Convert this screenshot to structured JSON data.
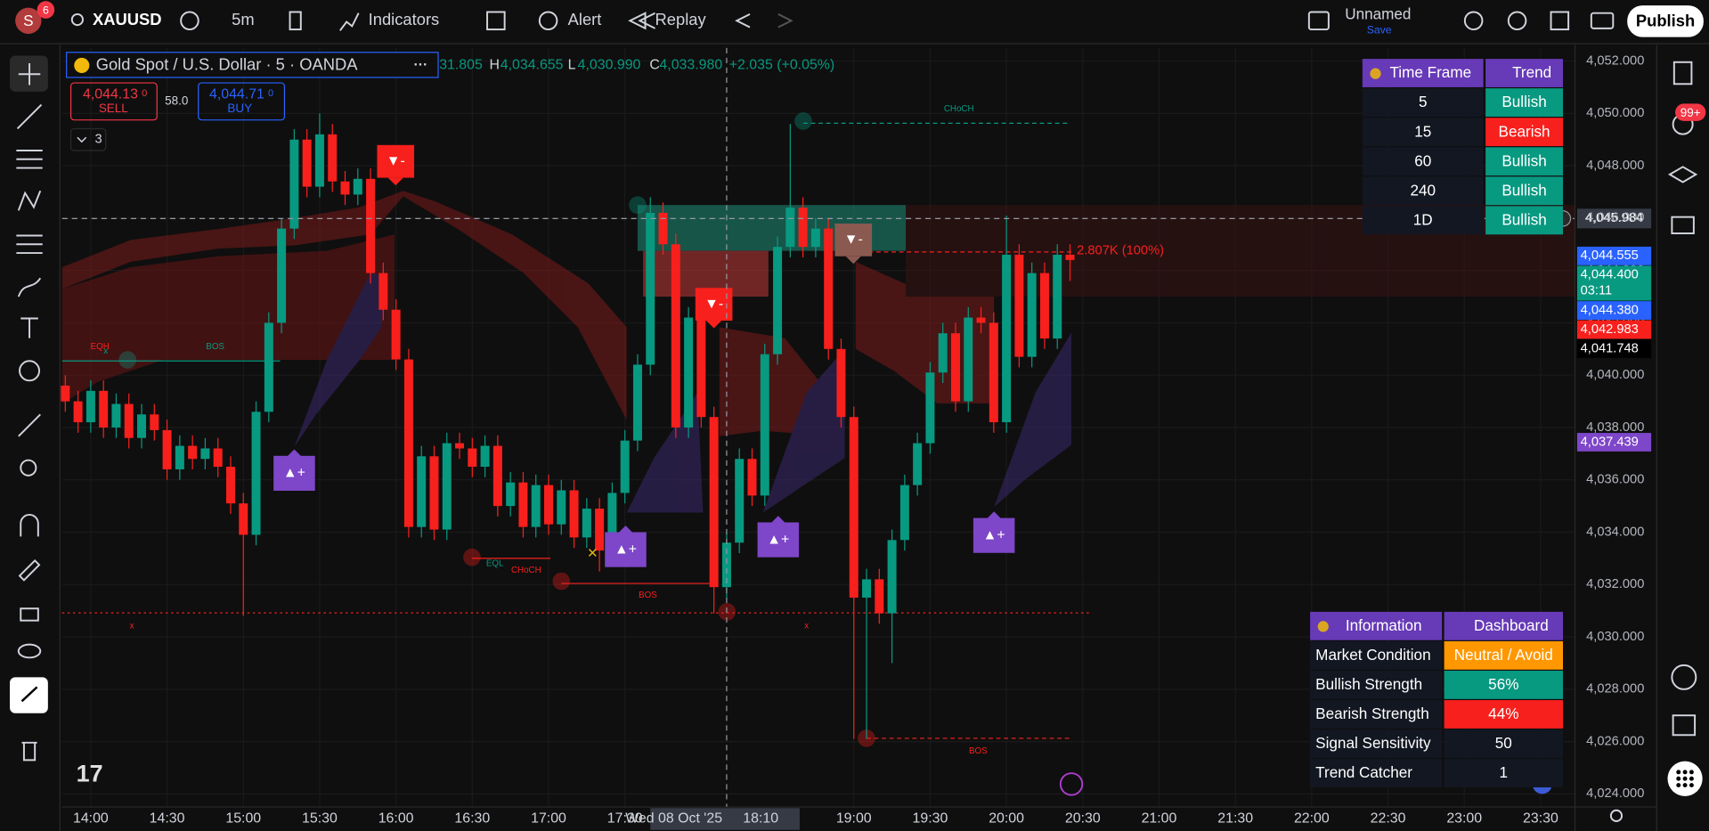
{
  "topbar": {
    "avatar": "S",
    "badge": "6",
    "symbol": "XAUUSD",
    "interval": "5m",
    "indicators": "Indicators",
    "alert": "Alert",
    "replay": "Replay",
    "layout_name": "Unnamed",
    "save": "Save",
    "publish": "Publish"
  },
  "legend": {
    "title": "Gold Spot / U.S. Dollar · 5 · OANDA",
    "open": "31.805",
    "h": "H",
    "high": "4,034.655",
    "l": "L",
    "low": "4,030.990",
    "c": "C",
    "close": "4,033.980",
    "change": "+2.035 (+0.05%)",
    "sell_price": "4,044.13",
    "sell_sup": "0",
    "sell": "SELL",
    "spread": "58.0",
    "buy_price": "4,044.71",
    "buy_sup": "0",
    "buy": "BUY",
    "indicators_count": "3"
  },
  "chart_data": {
    "type": "candlestick",
    "up_color": "#089981",
    "down_color": "#f7201d",
    "ohlc": [
      [
        4039.6,
        4040.0,
        4038.6,
        4039.0
      ],
      [
        4039.0,
        4039.4,
        4037.8,
        4038.2
      ],
      [
        4038.2,
        4039.8,
        4037.8,
        4039.4
      ],
      [
        4039.4,
        4039.8,
        4037.6,
        4038.0
      ],
      [
        4038.0,
        4039.3,
        4037.6,
        4038.9
      ],
      [
        4038.9,
        4039.3,
        4037.2,
        4037.6
      ],
      [
        4037.6,
        4038.9,
        4037.2,
        4038.5
      ],
      [
        4038.5,
        4038.9,
        4037.5,
        4037.9
      ],
      [
        4037.9,
        4038.3,
        4036.0,
        4036.4
      ],
      [
        4036.4,
        4037.7,
        4036.0,
        4037.3
      ],
      [
        4037.3,
        4037.7,
        4036.4,
        4036.8
      ],
      [
        4036.8,
        4037.6,
        4036.4,
        4037.2
      ],
      [
        4037.2,
        4037.6,
        4036.1,
        4036.5
      ],
      [
        4036.5,
        4036.9,
        4034.7,
        4035.1
      ],
      [
        4035.1,
        4035.5,
        4030.8,
        4033.9
      ],
      [
        4033.9,
        4039.0,
        4033.5,
        4038.6
      ],
      [
        4038.6,
        4042.4,
        4038.2,
        4042.0
      ],
      [
        4042.0,
        4046.0,
        4041.6,
        4045.6
      ],
      [
        4045.6,
        4049.4,
        4045.2,
        4049.0
      ],
      [
        4049.0,
        4049.4,
        4046.8,
        4047.2
      ],
      [
        4047.2,
        4050.0,
        4046.8,
        4049.2
      ],
      [
        4049.2,
        4049.6,
        4047.0,
        4047.4
      ],
      [
        4047.4,
        4047.8,
        4046.5,
        4046.9
      ],
      [
        4046.9,
        4047.9,
        4046.5,
        4047.5
      ],
      [
        4047.5,
        4047.9,
        4043.5,
        4043.9
      ],
      [
        4043.9,
        4044.3,
        4042.1,
        4042.5
      ],
      [
        4042.5,
        4042.9,
        4040.2,
        4040.6
      ],
      [
        4040.6,
        4041.0,
        4033.8,
        4034.2
      ],
      [
        4034.2,
        4037.3,
        4033.8,
        4036.9
      ],
      [
        4036.9,
        4037.3,
        4033.7,
        4034.1
      ],
      [
        4034.1,
        4037.8,
        4033.7,
        4037.4
      ],
      [
        4037.4,
        4037.8,
        4036.8,
        4037.2
      ],
      [
        4037.2,
        4037.6,
        4036.1,
        4036.5
      ],
      [
        4036.5,
        4037.7,
        4036.1,
        4037.3
      ],
      [
        4037.3,
        4037.7,
        4034.6,
        4035.0
      ],
      [
        4035.0,
        4036.3,
        4034.6,
        4035.9
      ],
      [
        4035.9,
        4036.3,
        4033.8,
        4034.2
      ],
      [
        4034.2,
        4036.2,
        4033.8,
        4035.8
      ],
      [
        4035.8,
        4036.2,
        4033.9,
        4034.3
      ],
      [
        4034.3,
        4036.0,
        4033.9,
        4035.6
      ],
      [
        4035.6,
        4036.0,
        4033.4,
        4033.8
      ],
      [
        4033.8,
        4035.3,
        4033.4,
        4034.9
      ],
      [
        4034.9,
        4035.3,
        4032.5,
        4033.3
      ],
      [
        4033.3,
        4035.9,
        4032.9,
        4035.5
      ],
      [
        4035.5,
        4037.9,
        4035.1,
        4037.5
      ],
      [
        4037.5,
        4040.8,
        4037.1,
        4040.4
      ],
      [
        4040.4,
        4046.8,
        4040.0,
        4046.2
      ],
      [
        4046.2,
        4046.6,
        4044.6,
        4045.0
      ],
      [
        4045.0,
        4045.4,
        4037.6,
        4038.0
      ],
      [
        4038.0,
        4042.6,
        4037.6,
        4042.2
      ],
      [
        4042.2,
        4042.6,
        4038.0,
        4038.4
      ],
      [
        4038.4,
        4038.8,
        4030.9,
        4031.9
      ],
      [
        4031.9,
        4034.0,
        4031.5,
        4033.6
      ],
      [
        4033.6,
        4037.2,
        4033.2,
        4036.8
      ],
      [
        4036.8,
        4037.2,
        4035.0,
        4035.4
      ],
      [
        4035.4,
        4041.2,
        4035.0,
        4040.8
      ],
      [
        4040.8,
        4045.3,
        4040.4,
        4044.9
      ],
      [
        4044.9,
        4049.6,
        4044.5,
        4046.4
      ],
      [
        4046.4,
        4046.8,
        4044.5,
        4044.9
      ],
      [
        4044.9,
        4046.0,
        4044.5,
        4045.6
      ],
      [
        4045.6,
        4046.0,
        4040.6,
        4041.0
      ],
      [
        4041.0,
        4041.4,
        4038.0,
        4038.4
      ],
      [
        4038.4,
        4038.8,
        4026.1,
        4031.5
      ],
      [
        4031.5,
        4032.6,
        4026.1,
        4032.2
      ],
      [
        4032.2,
        4032.6,
        4030.5,
        4030.9
      ],
      [
        4030.9,
        4034.1,
        4029.0,
        4033.7
      ],
      [
        4033.7,
        4036.2,
        4033.3,
        4035.8
      ],
      [
        4035.8,
        4037.8,
        4035.4,
        4037.4
      ],
      [
        4037.4,
        4040.5,
        4037.0,
        4040.1
      ],
      [
        4040.1,
        4042.0,
        4039.7,
        4041.6
      ],
      [
        4041.6,
        4042.0,
        4038.6,
        4039.0
      ],
      [
        4039.0,
        4042.6,
        4038.6,
        4042.2
      ],
      [
        4042.2,
        4042.6,
        4041.6,
        4042.0
      ],
      [
        4042.0,
        4042.4,
        4037.8,
        4038.2
      ],
      [
        4038.2,
        4046.1,
        4037.8,
        4044.6
      ],
      [
        4044.6,
        4045.0,
        4040.3,
        4040.7
      ],
      [
        4040.7,
        4044.3,
        4040.3,
        4043.9
      ],
      [
        4043.9,
        4044.3,
        4041.0,
        4041.4
      ],
      [
        4041.4,
        4045.0,
        4041.0,
        4044.6
      ],
      [
        4044.6,
        4045.0,
        4043.6,
        4044.4
      ]
    ],
    "xlim": [
      -0.25,
      118.7
    ],
    "xticks": [
      {
        "value": 2,
        "label": "14:00"
      },
      {
        "value": 8,
        "label": "14:30"
      },
      {
        "value": 14,
        "label": "15:00"
      },
      {
        "value": 20,
        "label": "15:30"
      },
      {
        "value": 26,
        "label": "16:00"
      },
      {
        "value": 32,
        "label": "16:30"
      },
      {
        "value": 38,
        "label": "17:00"
      },
      {
        "value": 44,
        "label": "17:30"
      },
      {
        "value": 62,
        "label": "19:00"
      },
      {
        "value": 68,
        "label": "19:30"
      },
      {
        "value": 74,
        "label": "20:00"
      },
      {
        "value": 80,
        "label": "20:30"
      },
      {
        "value": 86,
        "label": "21:00"
      },
      {
        "value": 92,
        "label": "21:30"
      },
      {
        "value": 98,
        "label": "22:00"
      },
      {
        "value": 104,
        "label": "22:30"
      },
      {
        "value": 110,
        "label": "23:00"
      },
      {
        "value": 116,
        "label": "23:30"
      }
    ],
    "ylim": [
      4023.5,
      4052.5
    ],
    "yticks": [
      {
        "value": 4024,
        "label": "4,024.000"
      },
      {
        "value": 4026,
        "label": "4,026.000"
      },
      {
        "value": 4028,
        "label": "4,028.000"
      },
      {
        "value": 4030,
        "label": "4,030.000"
      },
      {
        "value": 4032,
        "label": "4,032.000"
      },
      {
        "value": 4034,
        "label": "4,034.000"
      },
      {
        "value": 4036,
        "label": "4,036.000"
      },
      {
        "value": 4038,
        "label": "4,038.000"
      },
      {
        "value": 4040,
        "label": "4,040.000"
      },
      {
        "value": 4042,
        "label": "4,042.000"
      },
      {
        "value": 4044,
        "label": "4,044.000"
      },
      {
        "value": 4046,
        "label": "4,046.000"
      },
      {
        "value": 4048,
        "label": "4,048.000"
      },
      {
        "value": 4050,
        "label": "4,050.000"
      },
      {
        "value": 4052,
        "label": "4,052.000"
      }
    ],
    "crosshair": {
      "x": 52,
      "date_label": "Wed 08 Oct '25",
      "time_label": "18:10",
      "y": {
        "value": 4045.984,
        "label": "4,045.984"
      }
    },
    "price_labels": [
      {
        "value": 4044.555,
        "label": "4,044.555",
        "color": "#2962ff"
      },
      {
        "value": 4044.4,
        "label": "4,044.400",
        "color": "#089981",
        "countdown": "03:11"
      },
      {
        "value": 4044.38,
        "label": "4,044.380",
        "color": "#2962ff"
      },
      {
        "value": 4042.983,
        "label": "4,042.983",
        "color": "#f7201d"
      },
      {
        "value": 4041.748,
        "label": "4,041.748",
        "color": "#000000"
      },
      {
        "value": 4037.439,
        "label": "4,037.439",
        "color": "#7e46c8"
      }
    ],
    "annotations": [
      "CHoCH",
      "EQH",
      "x",
      "BOS",
      "EQL",
      "CHoCH",
      "BOS",
      "x",
      "x",
      "BOS",
      "2.807K (100%)",
      "▼-",
      "▼-",
      "▼-",
      "▲+",
      "▲+",
      "▲+",
      "▲+",
      "×"
    ]
  },
  "trend_table": {
    "header": [
      "Time Frame",
      "Trend"
    ],
    "rows": [
      [
        "5",
        "Bullish"
      ],
      [
        "15",
        "Bearish"
      ],
      [
        "60",
        "Bullish"
      ],
      [
        "240",
        "Bullish"
      ],
      [
        "1D",
        "Bullish"
      ]
    ],
    "row_colors": [
      "#089981",
      "#f7201d",
      "#089981",
      "#089981",
      "#089981"
    ]
  },
  "info_table": {
    "header": [
      "Information",
      "Dashboard"
    ],
    "rows": [
      [
        "Market Condition",
        "Neutral / Avoid"
      ],
      [
        "Bullish Strength",
        "56%"
      ],
      [
        "Bearish Strength",
        "44%"
      ],
      [
        "Signal Sensitivity",
        "50"
      ],
      [
        "Trend Catcher",
        "1"
      ]
    ],
    "row_colors": [
      "#ff9800",
      "#089981",
      "#f7201d",
      null,
      null
    ]
  },
  "sidebar": {
    "notifications": "99+"
  }
}
